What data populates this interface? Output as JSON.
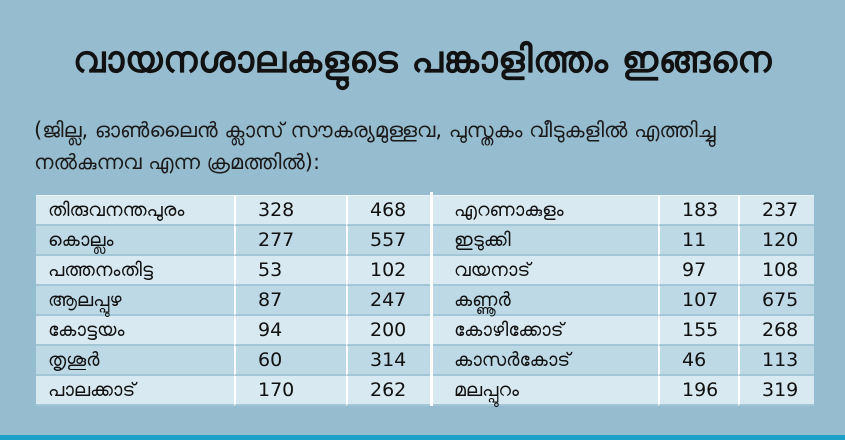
{
  "title": "വായനശാലകളുടെ പങ്കാളിത്തം ഇങ്ങനെ",
  "subtitle": "(ജില്ല, ഓൺലൈൻ ക്ലാസ് സൗകര്യമുള്ളവ, പുസ്തകം വീടുകളിൽ എത്തിച്ചു നൽകുന്നവ എന്ന ക്രമത്തിൽ):",
  "left_rows": [
    {
      "district": "തിരുവനന്തപുരം",
      "online": "328",
      "delivery": "468"
    },
    {
      "district": "കൊല്ലം",
      "online": "277",
      "delivery": "557"
    },
    {
      "district": "പത്തനംതിട്ട",
      "online": "53",
      "delivery": "102"
    },
    {
      "district": "ആലപ്പുഴ",
      "online": "87",
      "delivery": "247"
    },
    {
      "district": "കോട്ടയം",
      "online": "94",
      "delivery": "200"
    },
    {
      "district": "തൃശൂർ",
      "online": "60",
      "delivery": "314"
    },
    {
      "district": "പാലക്കാട്",
      "online": "170",
      "delivery": "262"
    }
  ],
  "right_rows": [
    {
      "district": "എറണാകുളം",
      "online": "183",
      "delivery": "237"
    },
    {
      "district": "ഇടുക്കി",
      "online": "11",
      "delivery": "120"
    },
    {
      "district": "വയനാട്",
      "online": "97",
      "delivery": "108"
    },
    {
      "district": "കണ്ണൂർ",
      "online": "107",
      "delivery": "675"
    },
    {
      "district": "കോഴിക്കോട്",
      "online": "155",
      "delivery": "268"
    },
    {
      "district": "കാസർകോട്",
      "online": "46",
      "delivery": "113"
    },
    {
      "district": "മലപ്പുറം",
      "online": "196",
      "delivery": "319"
    }
  ],
  "colors": {
    "background": "#96bccf",
    "row_light": "#d8e9f1",
    "row_dark": "#bdd9e6",
    "accent_bar": "#1e9fc8"
  }
}
